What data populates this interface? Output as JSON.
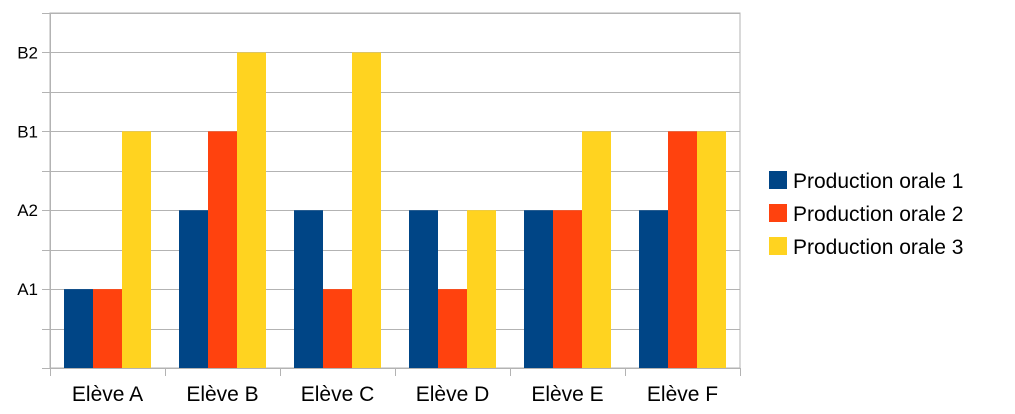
{
  "chart_data": {
    "type": "bar",
    "title": "",
    "xlabel": "",
    "ylabel": "",
    "categories": [
      "Elève A",
      "Elève B",
      "Elève C",
      "Elève D",
      "Elève E",
      "Elève F"
    ],
    "y_ticks": [
      {
        "value": 1,
        "label": "A1"
      },
      {
        "value": 2,
        "label": "A2"
      },
      {
        "value": 3,
        "label": "B1"
      },
      {
        "value": 4,
        "label": "B2"
      }
    ],
    "ylim": [
      0,
      4.5
    ],
    "grid": true,
    "legend_position": "right",
    "series": [
      {
        "name": "Production orale 1",
        "color": "#004586",
        "values": [
          1,
          2,
          2,
          2,
          2,
          2
        ]
      },
      {
        "name": "Production orale 2",
        "color": "#ff420e",
        "values": [
          1,
          3,
          1,
          1,
          2,
          3
        ]
      },
      {
        "name": "Production orale 3",
        "color": "#ffd320",
        "values": [
          3,
          4,
          4,
          2,
          3,
          3
        ]
      }
    ]
  }
}
